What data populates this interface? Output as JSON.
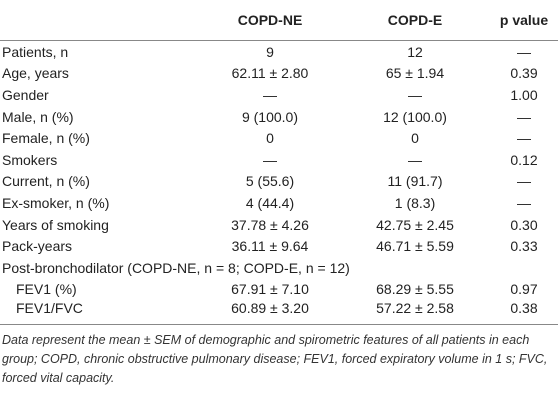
{
  "table": {
    "header": [
      "COPD-NE",
      "COPD-E",
      "p value"
    ],
    "rows": [
      [
        "Patients, n",
        "9",
        "12",
        "—"
      ],
      [
        "Age, years",
        "62.11 ± 2.80",
        "65 ± 1.94",
        "0.39"
      ],
      [
        "Gender",
        "—",
        "—",
        "1.00"
      ],
      [
        "Male, n (%)",
        "9 (100.0)",
        "12 (100.0)",
        "—"
      ],
      [
        "Female, n (%)",
        "0",
        "0",
        "—"
      ],
      [
        "Smokers",
        "—",
        "—",
        "0.12"
      ],
      [
        "Current, n (%)",
        "5 (55.6)",
        "11 (91.7)",
        "—"
      ],
      [
        "Ex-smoker, n (%)",
        "4 (44.4)",
        "1 (8.3)",
        "—"
      ],
      [
        "Years of smoking",
        "37.78 ± 4.26",
        "42.75 ± 2.45",
        "0.30"
      ],
      [
        "Pack-years",
        "36.11 ± 9.64",
        "46.71 ± 5.59",
        "0.33"
      ],
      [
        "Post-bronchodilator (COPD-NE, n = 8; COPD-E, n = 12)"
      ],
      [
        "FEV1 (%)",
        "67.91 ± 7.10",
        "68.29 ± 5.55",
        "0.97"
      ],
      [
        "FEV1/FVC",
        "60.89 ± 3.20",
        "57.22 ± 2.58",
        "0.38"
      ]
    ]
  },
  "note": "Data represent the mean ± SEM of demographic and spirometric features of all patients in each group; COPD, chronic obstructive pulmonary disease; FEV1, forced expiratory volume in 1 s; FVC, forced vital capacity."
}
